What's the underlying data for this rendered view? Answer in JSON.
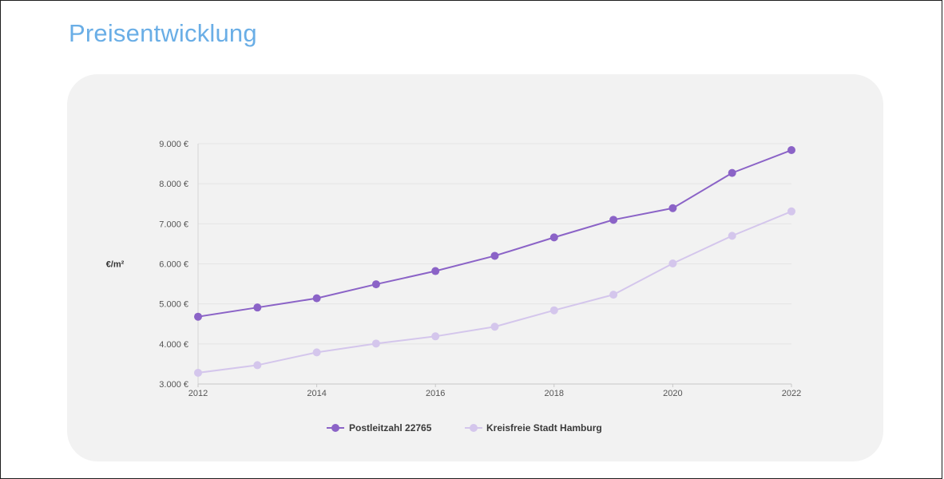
{
  "page": {
    "title": "Preisentwicklung"
  },
  "chart_data": {
    "type": "line",
    "title": "",
    "ylabel": "€/m²",
    "xlabel": "",
    "x": [
      2012,
      2013,
      2014,
      2015,
      2016,
      2017,
      2018,
      2019,
      2020,
      2021,
      2022
    ],
    "xticks": [
      "2012",
      "2014",
      "2016",
      "2018",
      "2020",
      "2022"
    ],
    "xlim": [
      2012,
      2022
    ],
    "ylim": [
      3000,
      9000
    ],
    "yticks": [
      {
        "value": 3000,
        "label": "3.000 €"
      },
      {
        "value": 4000,
        "label": "4.000 €"
      },
      {
        "value": 5000,
        "label": "5.000 €"
      },
      {
        "value": 6000,
        "label": "6.000 €"
      },
      {
        "value": 7000,
        "label": "7.000 €"
      },
      {
        "value": 8000,
        "label": "8.000 €"
      },
      {
        "value": 9000,
        "label": "9.000 €"
      }
    ],
    "grid": "horizontal",
    "legend_position": "bottom-center",
    "series": [
      {
        "name": "Postleitzahl 22765",
        "color": "#8b63c7",
        "values": [
          4680,
          4910,
          5140,
          5490,
          5820,
          6200,
          6660,
          7100,
          7390,
          8270,
          8840
        ]
      },
      {
        "name": "Kreisfreie Stadt Hamburg",
        "color": "#d4c6ec",
        "values": [
          3280,
          3470,
          3790,
          4010,
          4190,
          4430,
          4840,
          5230,
          6010,
          6700,
          7310
        ]
      }
    ]
  }
}
